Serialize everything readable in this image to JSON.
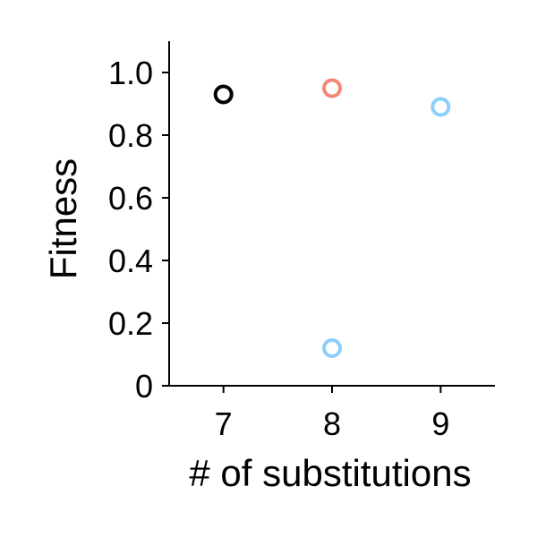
{
  "chart_data": {
    "type": "scatter",
    "title": "",
    "xlabel": "# of substitutions",
    "ylabel": "Fitness",
    "xlim": [
      6.5,
      9.5
    ],
    "ylim": [
      0,
      1.1
    ],
    "x_ticks": [
      7,
      8,
      9
    ],
    "y_ticks": [
      0,
      0.2,
      0.4,
      0.6,
      0.8,
      1.0
    ],
    "x_tick_labels": [
      "7",
      "8",
      "9"
    ],
    "y_tick_labels": [
      "0",
      "0.2",
      "0.4",
      "0.6",
      "0.8",
      "1.0"
    ],
    "grid": false,
    "marker": "open-circle",
    "points": [
      {
        "x": 7,
        "y": 0.93,
        "color": "#000000"
      },
      {
        "x": 8,
        "y": 0.95,
        "color": "#f4877a"
      },
      {
        "x": 8,
        "y": 0.12,
        "color": "#8ccff9"
      },
      {
        "x": 9,
        "y": 0.89,
        "color": "#8ccff9"
      }
    ]
  }
}
